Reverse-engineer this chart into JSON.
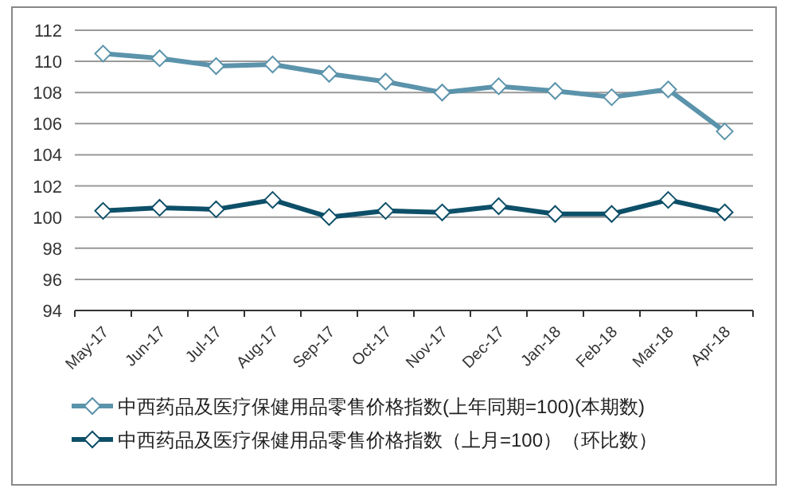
{
  "chart_data": {
    "type": "line",
    "categories": [
      "May-17",
      "Jun-17",
      "Jul-17",
      "Aug-17",
      "Sep-17",
      "Oct-17",
      "Nov-17",
      "Dec-17",
      "Jan-18",
      "Feb-18",
      "Mar-18",
      "Apr-18"
    ],
    "series": [
      {
        "name": "中西药品及医疗保健用品零售价格指数(上年同期=100)(本期数)",
        "color": "#5b93ab",
        "values": [
          110.5,
          110.2,
          109.7,
          109.8,
          109.2,
          108.7,
          108.0,
          108.4,
          108.1,
          107.7,
          108.2,
          105.5
        ]
      },
      {
        "name": "中西药品及医疗保健用品零售价格指数（上月=100）（环比数）",
        "color": "#0d4f68",
        "values": [
          100.4,
          100.6,
          100.5,
          101.1,
          100.0,
          100.4,
          100.3,
          100.7,
          100.2,
          100.2,
          101.1,
          100.3
        ]
      }
    ],
    "ylim": [
      94,
      112
    ],
    "yticks": [
      94,
      96,
      98,
      100,
      102,
      104,
      106,
      108,
      110,
      112
    ],
    "grid": "y",
    "legend": "bottom",
    "marker": "diamond",
    "line_style": "solid"
  }
}
